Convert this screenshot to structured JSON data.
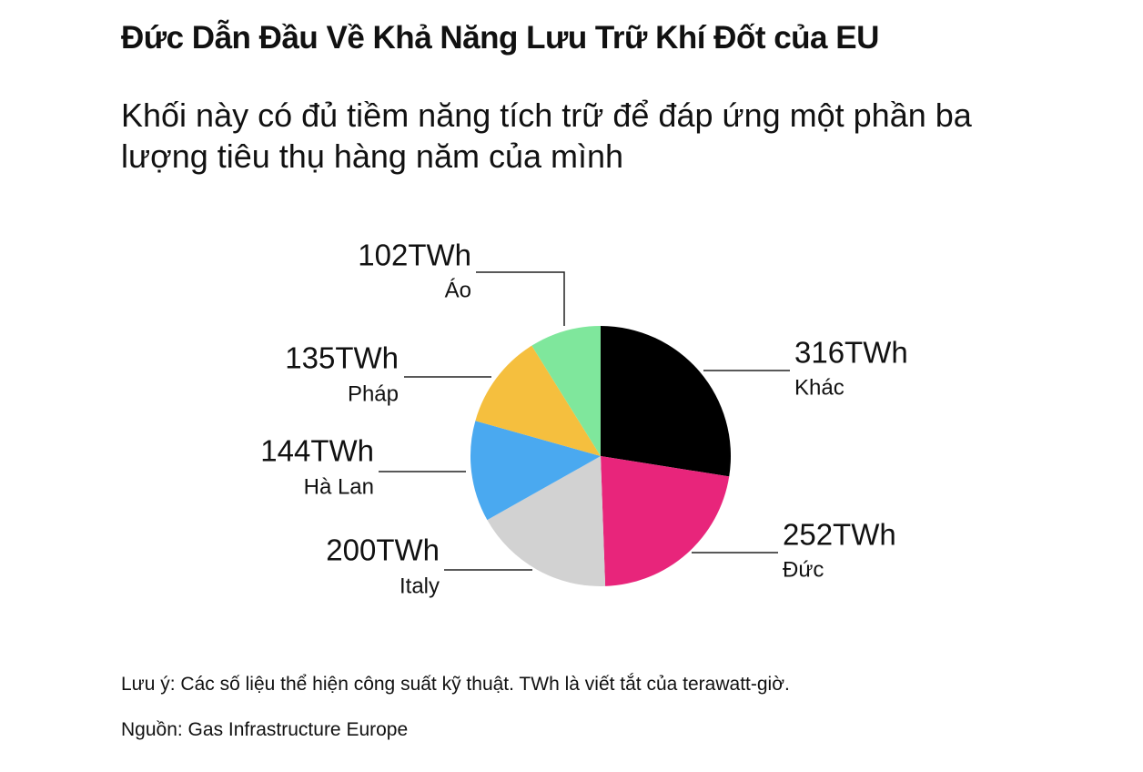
{
  "chart_data": {
    "type": "pie",
    "title": "Đức Dẫn Đầu Về Khả Năng Lưu Trữ Khí Đốt của EU",
    "subtitle": "Khối này có đủ tiềm năng tích trữ để đáp ứng một phần ba lượng tiêu thụ hàng năm của mình",
    "categories": [
      "Khác",
      "Đức",
      "Italy",
      "Hà Lan",
      "Pháp",
      "Áo"
    ],
    "values": [
      316,
      252,
      200,
      144,
      135,
      102
    ],
    "value_labels": [
      "316TWh",
      "252TWh",
      "200TWh",
      "144TWh",
      "135TWh",
      "102TWh"
    ],
    "colors": [
      "#000000",
      "#e8257b",
      "#d2d2d2",
      "#4aa9f0",
      "#f5bf3e",
      "#7fe79c"
    ],
    "note": "Lưu ý: Các số liệu thể hiện công suất kỹ thuật. TWh là viết tắt của terawatt-giờ.",
    "source": "Nguồn: Gas Infrastructure Europe"
  }
}
